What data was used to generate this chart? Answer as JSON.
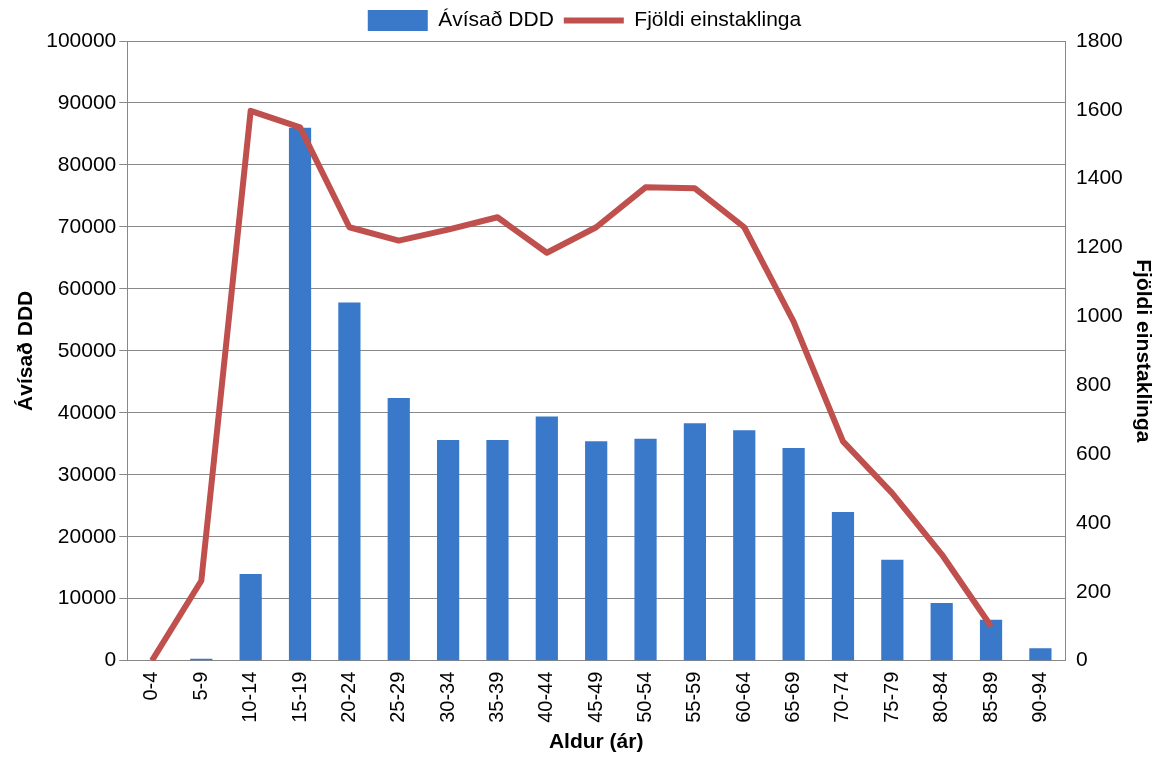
{
  "chart_data": {
    "type": "bar",
    "xlabel": "Aldur (ár)",
    "ylabel": "Ávísað DDD",
    "y2label": "Fjöldi einstaklinga",
    "categories": [
      "0-4",
      "5-9",
      "10-14",
      "15-19",
      "20-24",
      "25-29",
      "30-34",
      "35-39",
      "40-44",
      "45-49",
      "50-54",
      "55-59",
      "60-64",
      "65-69",
      "70-74",
      "75-79",
      "80-84",
      "85-89",
      "90-94"
    ],
    "series": [
      {
        "name": "Ávísað DDD",
        "color": "#3a78c9",
        "values": [
          0,
          300,
          14000,
          86000,
          57800,
          42400,
          35600,
          35600,
          39400,
          35400,
          35800,
          38300,
          37200,
          34300,
          24000,
          16300,
          9300,
          6600,
          2000
        ]
      },
      {
        "name": "Fjöldi einstaklinga",
        "type": "line",
        "axis": "y2",
        "color": "#c0504d",
        "values": [
          0,
          232,
          1597,
          1549,
          1259,
          1220,
          1252,
          1288,
          1185,
          1259,
          1375,
          1372,
          1259,
          985,
          637,
          486,
          309,
          100,
          null
        ]
      }
    ],
    "ylim": [
      0,
      100000
    ],
    "yticks": [
      0,
      10000,
      20000,
      30000,
      40000,
      50000,
      60000,
      70000,
      80000,
      90000,
      100000
    ],
    "y2lim": [
      0,
      1800
    ],
    "y2ticks": [
      0,
      200,
      400,
      600,
      800,
      1000,
      1200,
      1400,
      1600,
      1800
    ],
    "grid": "y",
    "legend": "top",
    "marker": "none"
  }
}
